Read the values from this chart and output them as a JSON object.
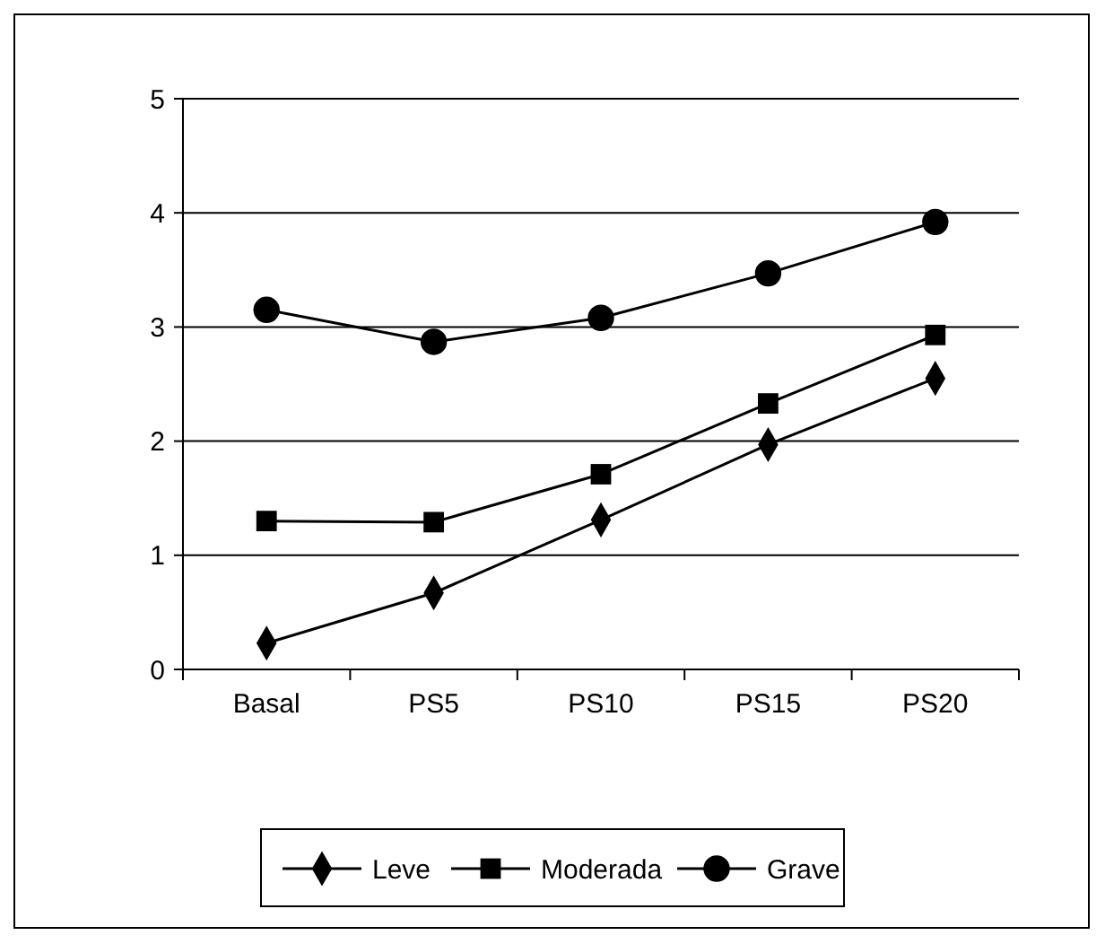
{
  "chart_data": {
    "type": "line",
    "categories": [
      "Basal",
      "PS5",
      "PS10",
      "PS15",
      "PS20"
    ],
    "series": [
      {
        "name": "Leve",
        "color": "#000000",
        "marker": "diamond",
        "values": [
          0.23,
          0.67,
          1.31,
          1.97,
          2.55
        ]
      },
      {
        "name": "Moderada",
        "color": "#000000",
        "marker": "square",
        "values": [
          1.3,
          1.29,
          1.71,
          2.33,
          2.93
        ]
      },
      {
        "name": "Grave",
        "color": "#000000",
        "marker": "circle",
        "values": [
          3.15,
          2.87,
          3.08,
          3.47,
          3.92
        ]
      }
    ],
    "ylim": [
      0,
      5
    ],
    "yticks": [
      0,
      1,
      2,
      3,
      4,
      5
    ],
    "grid": "y",
    "legend": "bottom",
    "line_style": "solid"
  }
}
